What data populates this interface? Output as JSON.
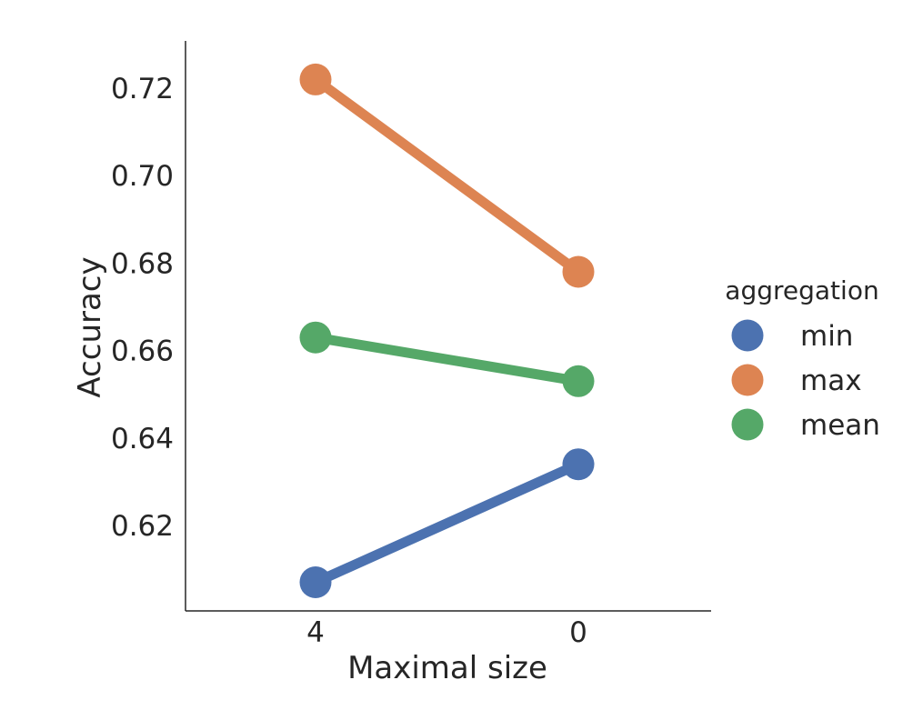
{
  "chart_data": {
    "type": "line",
    "title": "",
    "xlabel": "Maximal size",
    "ylabel": "Accuracy",
    "categories": [
      "4",
      "0"
    ],
    "yticks": [
      "0.62",
      "0.64",
      "0.66",
      "0.68",
      "0.70",
      "0.72"
    ],
    "ylim": [
      0.6,
      0.73
    ],
    "grid": false,
    "legend": {
      "title": "aggregation",
      "placement": "right"
    },
    "series": [
      {
        "name": "min",
        "values": [
          0.607,
          0.634
        ],
        "color": "#4c72b0"
      },
      {
        "name": "max",
        "values": [
          0.722,
          0.678
        ],
        "color": "#dd8452"
      },
      {
        "name": "mean",
        "values": [
          0.663,
          0.653
        ],
        "color": "#55a868"
      }
    ]
  }
}
